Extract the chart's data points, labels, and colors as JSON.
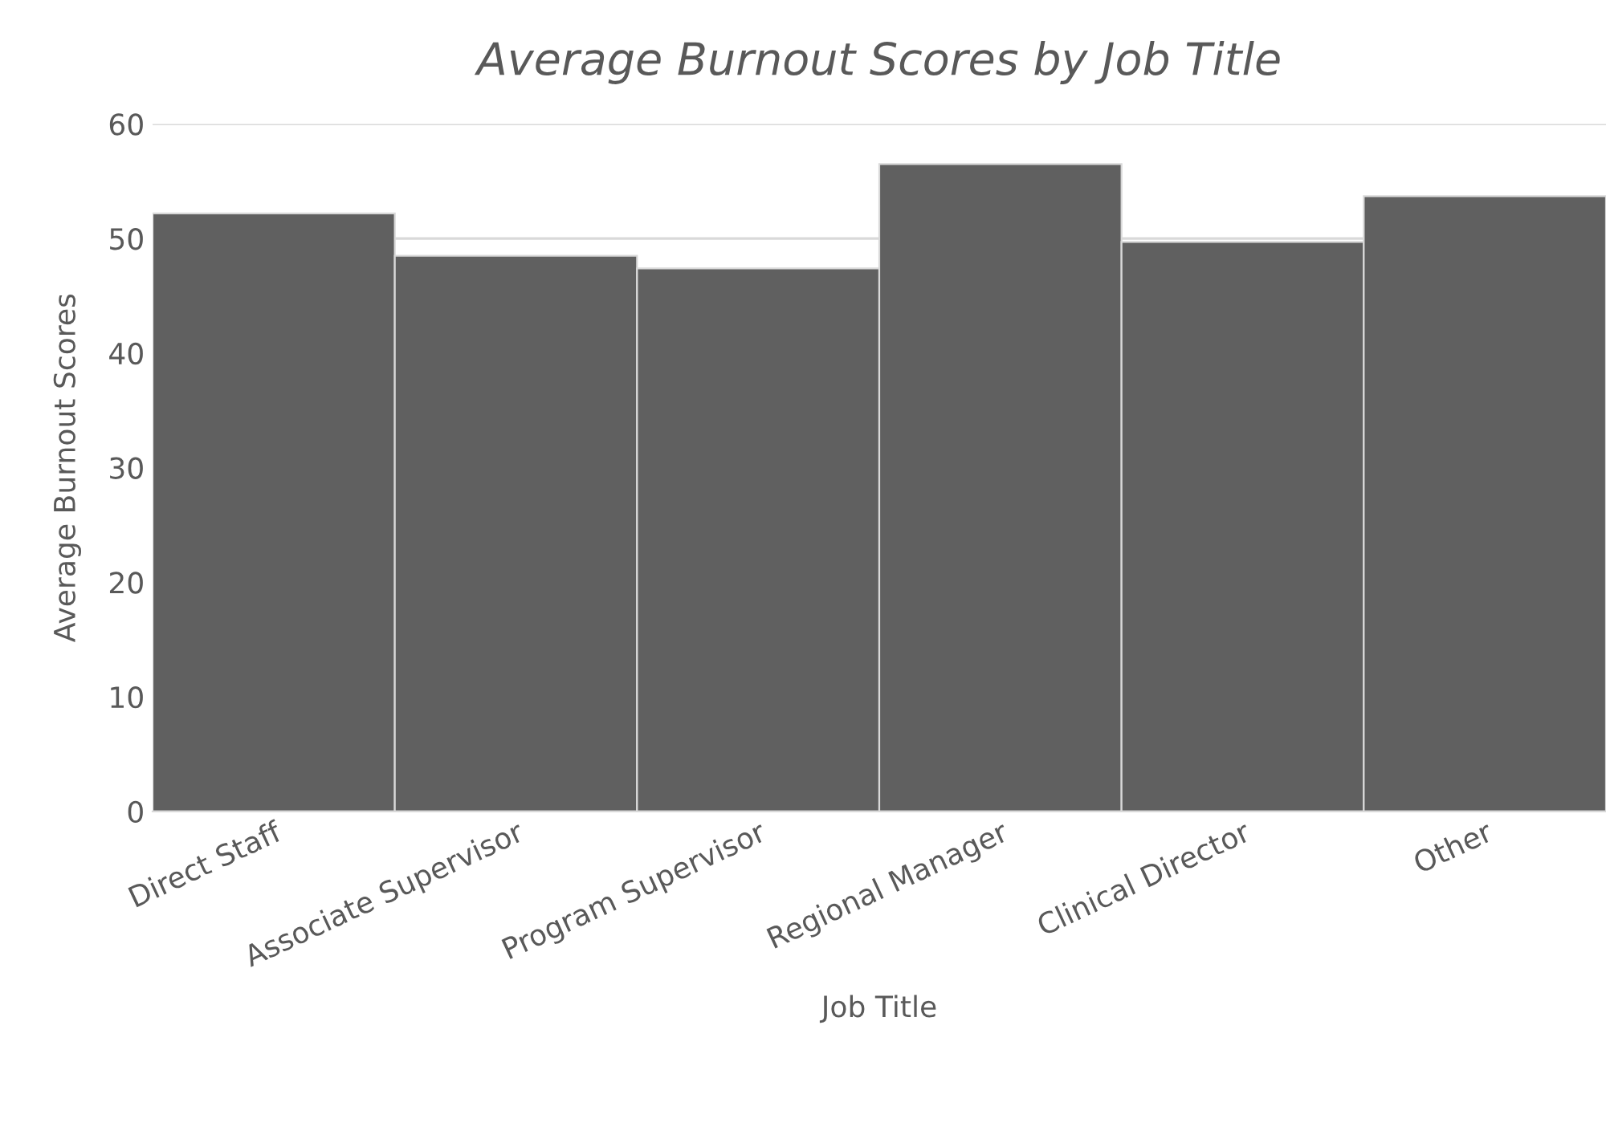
{
  "chart_data": {
    "type": "bar",
    "title": "Average Burnout Scores by Job Title",
    "xlabel": "Job Title",
    "ylabel": "Average Burnout Scores",
    "categories": [
      "Direct Staff",
      "Associate Supervisor",
      "Program Supervisor",
      "Regional Manager",
      "Clinical Director",
      "Other"
    ],
    "values": [
      52.2,
      48.5,
      47.4,
      56.5,
      49.7,
      53.7
    ],
    "color": "#606060",
    "ylim": [
      0,
      60
    ],
    "yticks": [
      0,
      10,
      20,
      30,
      40,
      50,
      60
    ],
    "grid": "y"
  }
}
